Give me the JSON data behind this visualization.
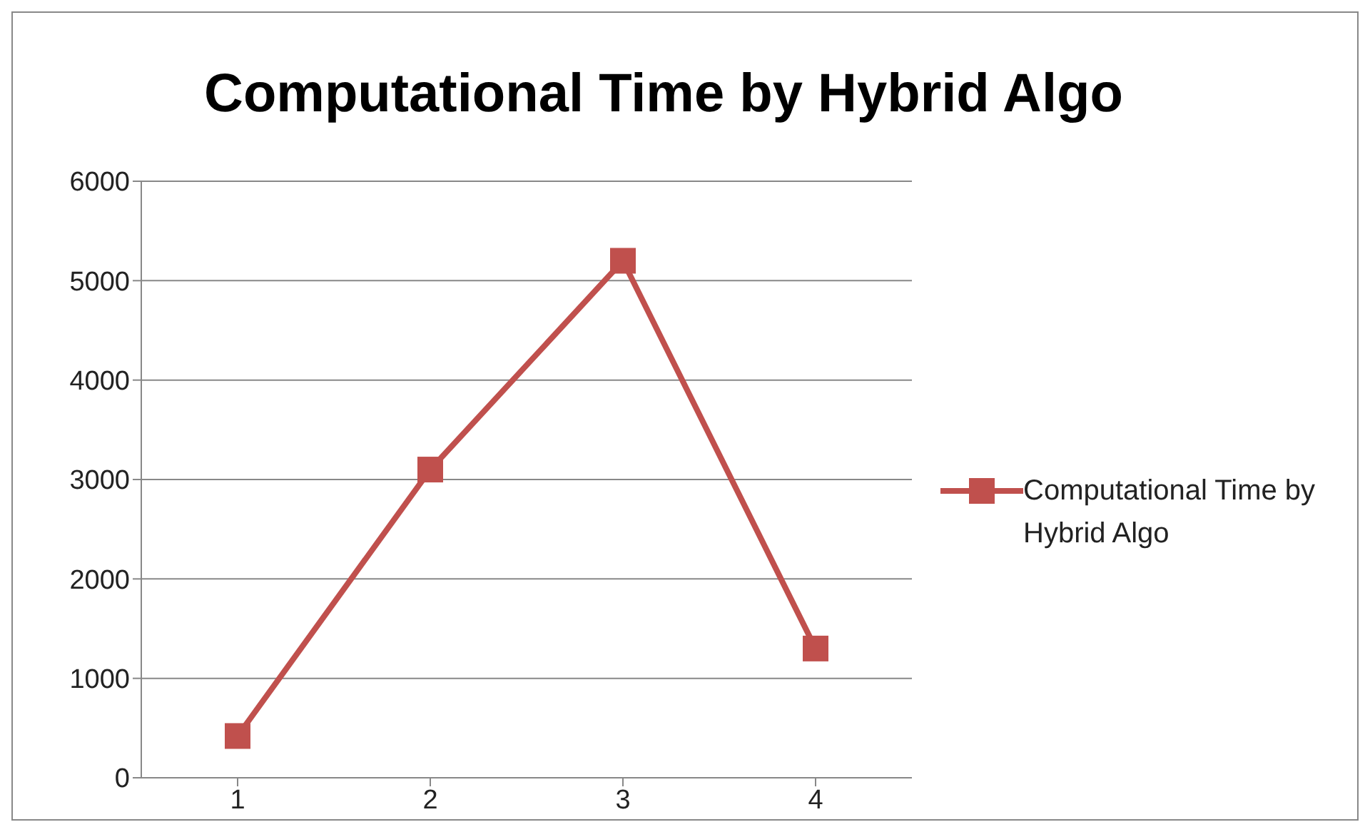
{
  "chart_data": {
    "type": "line",
    "title": "Computational Time by Hybrid Algo",
    "categories": [
      "1",
      "2",
      "3",
      "4"
    ],
    "series": [
      {
        "name": "Computational Time by Hybrid Algo",
        "color": "#c0504d",
        "values": [
          420,
          3100,
          5200,
          1300
        ]
      }
    ],
    "ylim": [
      0,
      6000
    ],
    "yticks": [
      0,
      1000,
      2000,
      3000,
      4000,
      5000,
      6000
    ],
    "grid": "y",
    "legend": "right",
    "marker": "square",
    "line_style": "solid"
  }
}
